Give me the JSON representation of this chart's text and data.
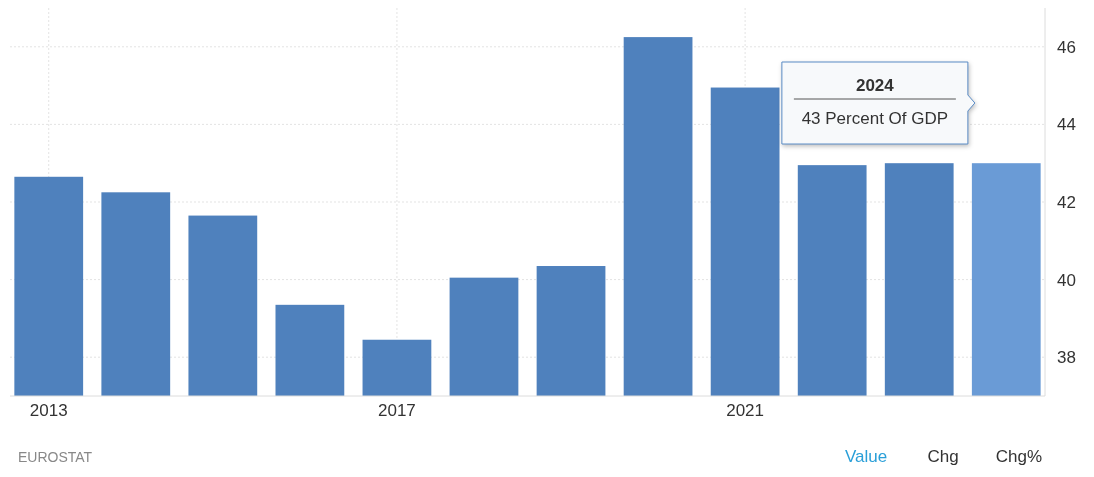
{
  "chart_data": {
    "type": "bar",
    "categories": [
      "2013",
      null,
      null,
      null,
      "2017",
      null,
      null,
      null,
      "2021",
      null,
      null,
      null
    ],
    "values": [
      42.65,
      42.25,
      41.65,
      39.35,
      38.45,
      40.05,
      40.35,
      46.25,
      44.95,
      42.95,
      43,
      43
    ],
    "colors": [
      "#4f81bd",
      "#4f81bd",
      "#4f81bd",
      "#4f81bd",
      "#4f81bd",
      "#4f81bd",
      "#4f81bd",
      "#4f81bd",
      "#4f81bd",
      "#4f81bd",
      "#4f81bd",
      "#6a9bd6"
    ],
    "ylim": [
      37,
      47
    ],
    "yticks": [
      38,
      40,
      42,
      44,
      46
    ],
    "grid": true,
    "annotations": [
      "2024",
      "43 Percent Of GDP",
      "EUROSTAT",
      "Value",
      "Chg",
      "Chg%"
    ]
  }
}
